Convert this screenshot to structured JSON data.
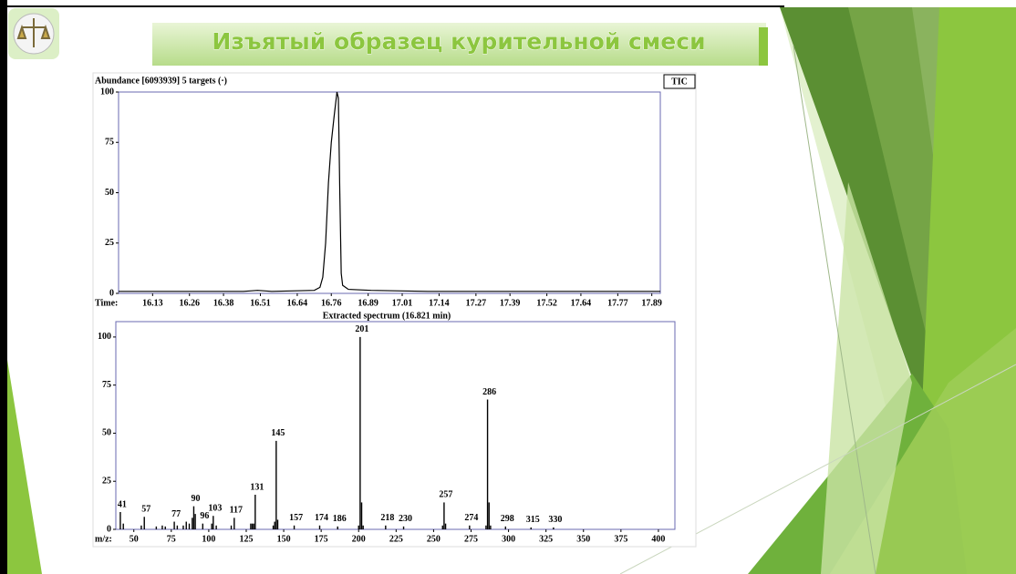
{
  "title": "Изъятый образец курительной смеси",
  "chart_data": [
    {
      "type": "line",
      "title": "Abundance [6093939] 5 targets (·)",
      "xlabel": "Time:",
      "xlim": [
        16.01,
        17.92
      ],
      "ylim": [
        0,
        100
      ],
      "xticks": [
        16.13,
        16.26,
        16.38,
        16.51,
        16.64,
        16.76,
        16.89,
        17.01,
        17.14,
        17.27,
        17.39,
        17.52,
        17.64,
        17.77,
        17.89
      ],
      "yticks": [
        0,
        25,
        50,
        75,
        100
      ],
      "legend": "top-right",
      "series": [
        {
          "name": "TIC",
          "color": "#000000",
          "x": [
            16.01,
            16.2,
            16.45,
            16.5,
            16.55,
            16.7,
            16.72,
            16.73,
            16.74,
            16.75,
            16.76,
            16.77,
            16.78,
            16.785,
            16.79,
            16.795,
            16.8,
            16.82,
            16.9,
            17.1,
            17.5,
            17.92
          ],
          "values": [
            1,
            1,
            1,
            1.5,
            1,
            1.5,
            3,
            8,
            25,
            55,
            75,
            88,
            100,
            97,
            50,
            10,
            4,
            2,
            1.5,
            1,
            1,
            1
          ]
        }
      ]
    },
    {
      "type": "bar",
      "title": "Extracted spectrum (16.821 min)",
      "xlabel": "m/z:",
      "xlim": [
        38,
        411
      ],
      "ylim": [
        0,
        108
      ],
      "xticks": [
        50,
        75,
        100,
        125,
        150,
        175,
        200,
        225,
        250,
        275,
        300,
        325,
        350,
        375,
        400
      ],
      "yticks": [
        0,
        25,
        50,
        75,
        100
      ],
      "series": [
        {
          "color": "#000000",
          "labels": true,
          "x": [
            41,
            57,
            77,
            90,
            96,
            103,
            117,
            131,
            145,
            157,
            174,
            186,
            201,
            218,
            230,
            257,
            274,
            286,
            298,
            315,
            330
          ],
          "values": [
            9,
            6.5,
            4,
            12,
            3,
            7,
            6,
            18,
            46,
            2,
            2,
            1.5,
            100,
            2,
            1.5,
            14,
            2,
            67.5,
            1.5,
            1,
            1
          ]
        },
        {
          "color": "#000000",
          "labels": false,
          "x": [
            43,
            55,
            65,
            69,
            71,
            79,
            83,
            85,
            87,
            89,
            91,
            102,
            105,
            115,
            128,
            129,
            130,
            143,
            144,
            146,
            200,
            202,
            203,
            256,
            258,
            285,
            287,
            288
          ],
          "values": [
            3,
            2,
            1.5,
            2,
            1.5,
            2,
            2,
            4,
            3,
            6,
            8,
            3,
            2,
            2,
            3,
            3,
            3,
            2,
            4,
            5,
            2,
            14,
            2,
            2,
            3,
            2,
            14,
            2
          ]
        }
      ]
    }
  ]
}
